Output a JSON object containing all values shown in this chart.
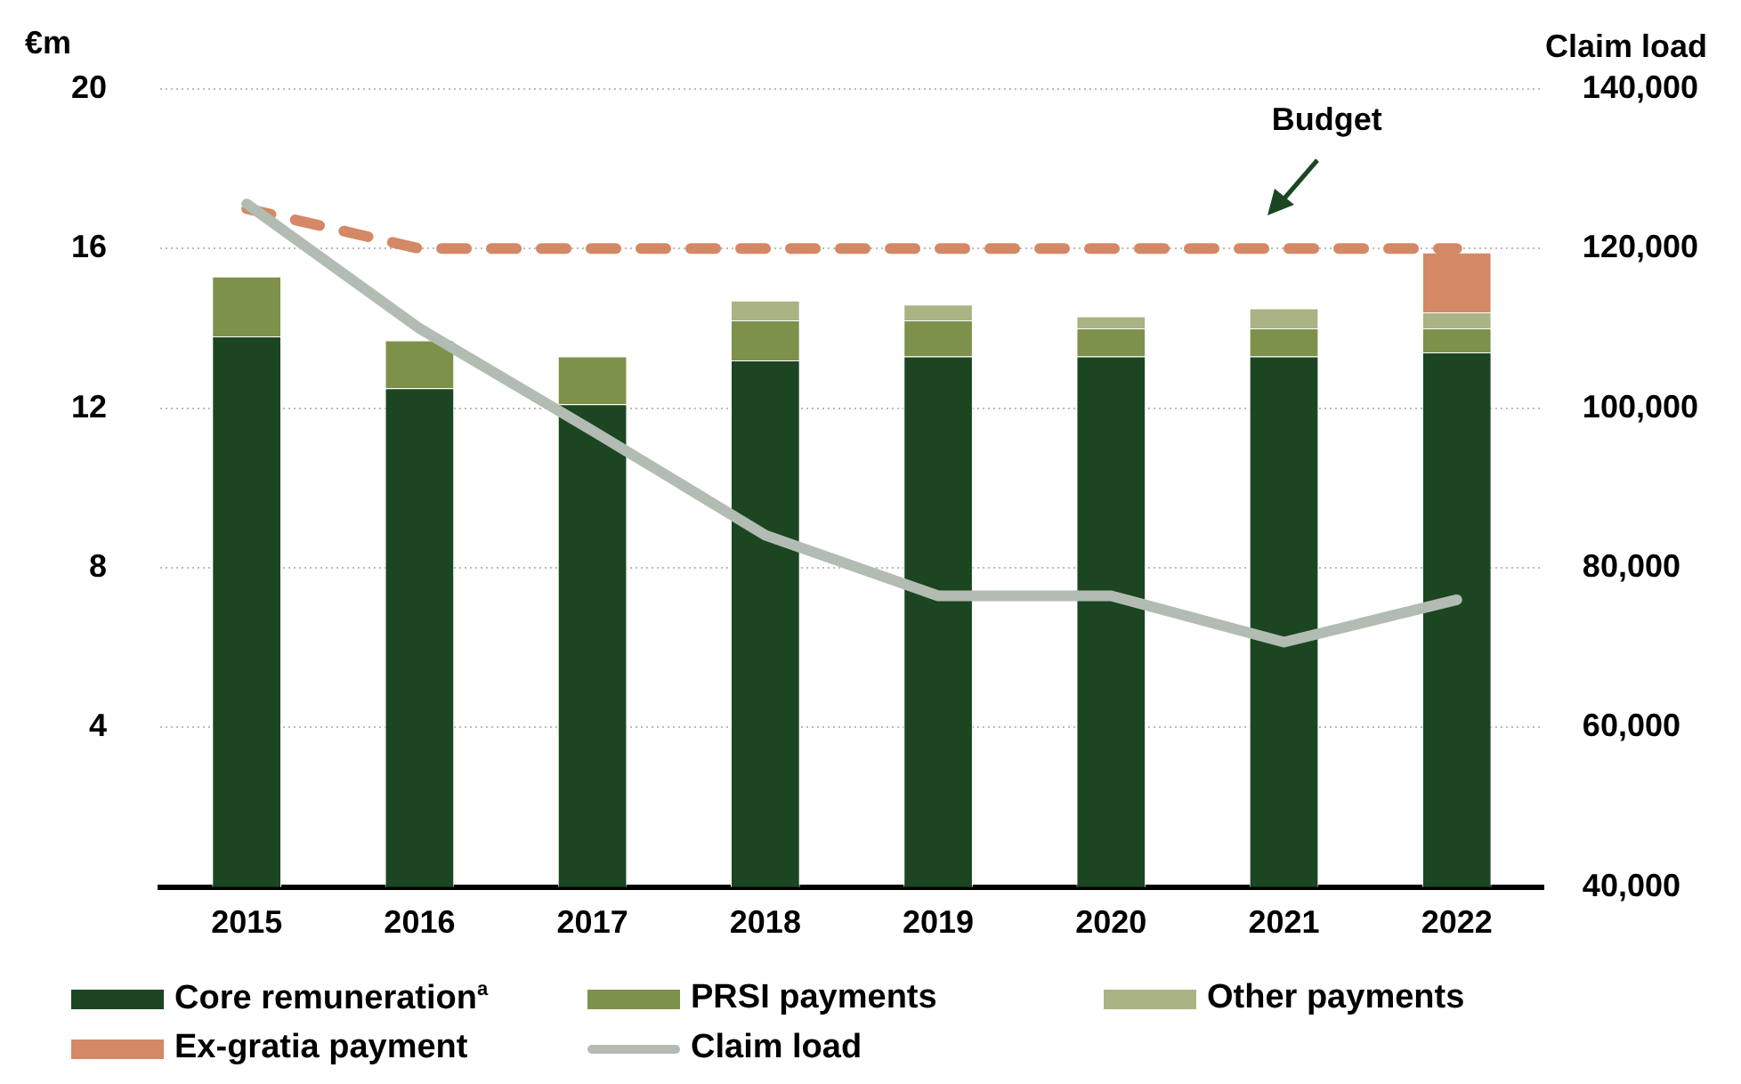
{
  "chart_data": {
    "type": "bar",
    "stacked": true,
    "ylabel": "€m",
    "y2label": "Claim load",
    "categories": [
      "2015",
      "2016",
      "2017",
      "2018",
      "2019",
      "2020",
      "2021",
      "2022"
    ],
    "series": [
      {
        "name": "Core remuneration$^{a}$",
        "color": "#1b4621",
        "values": [
          13.8,
          12.5,
          12.1,
          13.2,
          13.3,
          13.3,
          13.3,
          13.4
        ]
      },
      {
        "name": "PRSI payments",
        "color": "#7e914a",
        "values": [
          1.5,
          1.2,
          1.2,
          1.0,
          0.9,
          0.7,
          0.7,
          0.6
        ]
      },
      {
        "name": "Other payments",
        "color": "#a9b383",
        "values": [
          null,
          null,
          null,
          0.5,
          0.4,
          0.3,
          0.5,
          0.4
        ]
      },
      {
        "name": "Ex-gratia payment",
        "color": "#d48866",
        "values": [
          null,
          null,
          null,
          null,
          null,
          null,
          null,
          1.5
        ]
      },
      {
        "name": "Claim load",
        "type": "line",
        "axis": "y2",
        "color": "#b3bcb3",
        "marker": "none",
        "values": [
          125600,
          110000,
          97200,
          84100,
          76500,
          76500,
          70700,
          76000
        ]
      },
      {
        "type": "line",
        "color": "#d48866",
        "line_style": "dashed",
        "marker": "none",
        "values": [
          17,
          16,
          16,
          16,
          16,
          16,
          16,
          16
        ]
      }
    ],
    "annotations": [
      "Budget"
    ],
    "ylim": [
      0,
      20
    ],
    "yticks": [
      4,
      8,
      12,
      16,
      20
    ],
    "y2lim": [
      40000,
      140000
    ],
    "y2ticks": [
      {
        "value": 40000,
        "label": "40,000"
      },
      {
        "value": 60000,
        "label": "60,000"
      },
      {
        "value": 80000,
        "label": "80,000"
      },
      {
        "value": 100000,
        "label": "100,000"
      },
      {
        "value": 120000,
        "label": "120,000"
      },
      {
        "value": 140000,
        "label": "140,000"
      }
    ],
    "grid": "y",
    "legend": "bottom"
  }
}
